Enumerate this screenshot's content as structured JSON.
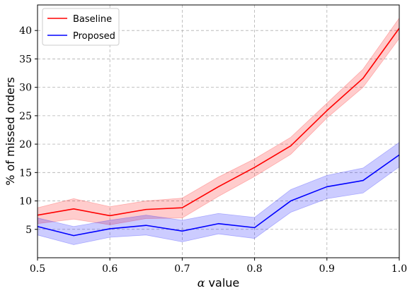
{
  "chart_data": {
    "type": "line",
    "xlabel_symbol": "α",
    "xlabel_text": "value",
    "ylabel": "% of missed orders",
    "x": [
      0.5,
      0.55,
      0.6,
      0.65,
      0.7,
      0.75,
      0.8,
      0.85,
      0.9,
      0.95,
      1.0
    ],
    "xlim": [
      0.5,
      1.0
    ],
    "ylim": [
      0,
      44.5
    ],
    "xticks": [
      0.5,
      0.6,
      0.7,
      0.8,
      0.9,
      1.0
    ],
    "xtick_labels": [
      "0.5",
      "0.6",
      "0.7",
      "0.8",
      "0.9",
      "1.0"
    ],
    "yticks": [
      5,
      10,
      15,
      20,
      25,
      30,
      35,
      40
    ],
    "ytick_labels": [
      "5",
      "10",
      "15",
      "20",
      "25",
      "30",
      "35",
      "40"
    ],
    "grid": true,
    "legend_position": "top-left",
    "series": [
      {
        "name": "Baseline",
        "color": "#ff0000",
        "values": [
          7.5,
          8.6,
          7.4,
          8.5,
          8.8,
          12.5,
          15.9,
          19.7,
          25.9,
          31.6,
          40.4
        ],
        "lower": [
          6.0,
          6.8,
          5.8,
          6.9,
          7.0,
          10.8,
          14.3,
          18.2,
          24.6,
          30.0,
          38.6
        ],
        "upper": [
          8.8,
          10.4,
          9.0,
          10.0,
          10.5,
          14.2,
          17.4,
          21.2,
          27.2,
          33.2,
          42.2
        ]
      },
      {
        "name": "Proposed",
        "color": "#0000ff",
        "values": [
          5.5,
          3.9,
          5.1,
          5.7,
          4.7,
          6.0,
          5.3,
          10.0,
          12.5,
          13.6,
          18.1
        ],
        "lower": [
          4.0,
          2.3,
          3.6,
          4.0,
          2.8,
          4.2,
          3.4,
          8.0,
          10.4,
          11.4,
          16.0
        ],
        "upper": [
          7.0,
          5.5,
          6.6,
          7.5,
          6.6,
          7.8,
          7.1,
          12.0,
          14.5,
          15.8,
          20.3
        ]
      }
    ]
  }
}
